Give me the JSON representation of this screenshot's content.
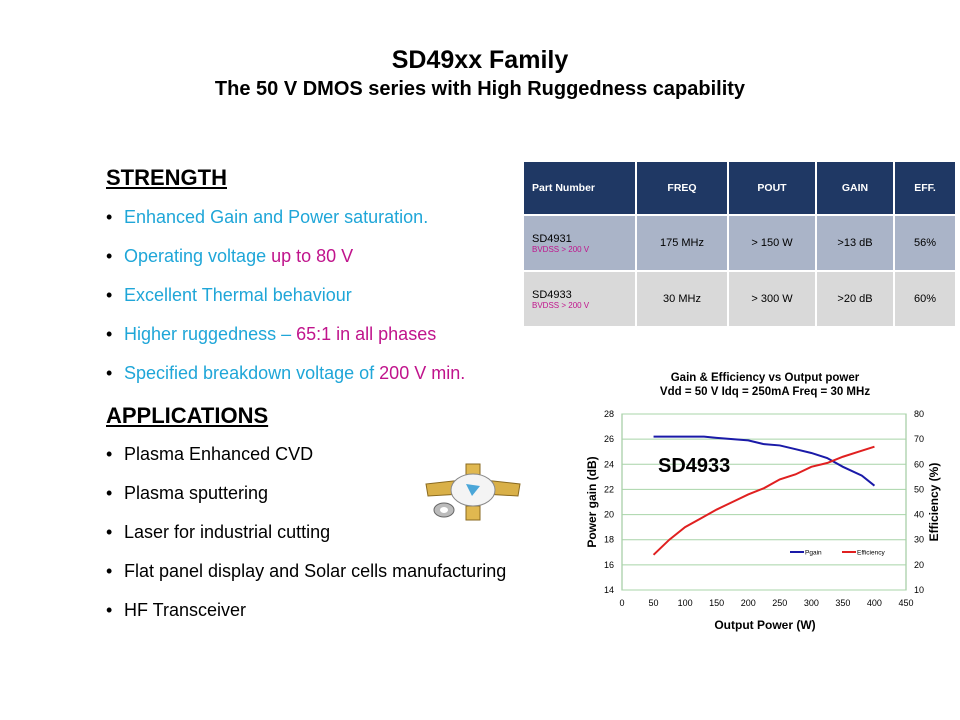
{
  "title": "SD49xx Family",
  "subtitle": "The 50 V DMOS series with High Ruggedness capability",
  "strength": {
    "heading": "STRENGTH",
    "items": [
      {
        "a": "Enhanced Gain and Power saturation.",
        "b": ""
      },
      {
        "a": "Operating voltage ",
        "b": "up to 80 V"
      },
      {
        "a": "Excellent Thermal behaviour",
        "b": ""
      },
      {
        "a": "Higher ruggedness – ",
        "b": "65:1 in all phases"
      },
      {
        "a": "Specified breakdown voltage of ",
        "b": "200 V min."
      }
    ]
  },
  "applications": {
    "heading": "APPLICATIONS",
    "items": [
      "Plasma Enhanced CVD",
      "Plasma sputtering",
      "Laser for industrial cutting",
      "Flat panel display and Solar cells manufacturing",
      "HF Transceiver"
    ]
  },
  "table": {
    "headers": [
      "Part Number",
      "FREQ",
      "POUT",
      "GAIN",
      "EFF."
    ],
    "rows": [
      {
        "part": "SD4931",
        "note": "BVDSS > 200 V",
        "freq": "175 MHz",
        "pout": "> 150 W",
        "gain": ">13 dB",
        "eff": "56%"
      },
      {
        "part": "SD4933",
        "note": "BVDSS > 200 V",
        "freq": "30 MHz",
        "pout": "> 300 W",
        "gain": ">20 dB",
        "eff": "60%"
      }
    ]
  },
  "chart_data": {
    "type": "line",
    "title": "Gain & Efficiency vs Output power",
    "subtitle": "Vdd = 50 V  Idq = 250mA  Freq = 30 MHz",
    "annotation": "SD4933",
    "xlabel": "Output Power (W)",
    "ylabel": "Power gain (dB)",
    "y2label": "Efficiency (%)",
    "xlim": [
      0,
      450
    ],
    "ylim": [
      14,
      28
    ],
    "y2lim": [
      10,
      80
    ],
    "xticks": [
      "0",
      "50",
      "100",
      "150",
      "200",
      "250",
      "300",
      "350",
      "400",
      "450"
    ],
    "yticks": [
      "14",
      "16",
      "18",
      "20",
      "22",
      "24",
      "26",
      "28"
    ],
    "y2ticks": [
      "10",
      "20",
      "30",
      "40",
      "50",
      "60",
      "70",
      "80"
    ],
    "legend_position": "bottom-right",
    "series": [
      {
        "name": "Pgain",
        "axis": "left",
        "color": "#1a1aa8",
        "x": [
          50,
          100,
          130,
          150,
          200,
          225,
          250,
          275,
          300,
          325,
          350,
          380,
          400
        ],
        "y": [
          26.2,
          26.2,
          26.2,
          26.1,
          25.9,
          25.6,
          25.5,
          25.2,
          24.9,
          24.5,
          23.8,
          23.1,
          22.3
        ]
      },
      {
        "name": "Efficiency",
        "axis": "right",
        "color": "#e02020",
        "x": [
          50,
          75,
          100,
          125,
          150,
          175,
          200,
          225,
          250,
          275,
          300,
          325,
          350,
          375,
          400
        ],
        "y": [
          24,
          30,
          35,
          38.5,
          42,
          45,
          48,
          50.5,
          54,
          56,
          59,
          60.5,
          63,
          65,
          67
        ]
      }
    ]
  }
}
